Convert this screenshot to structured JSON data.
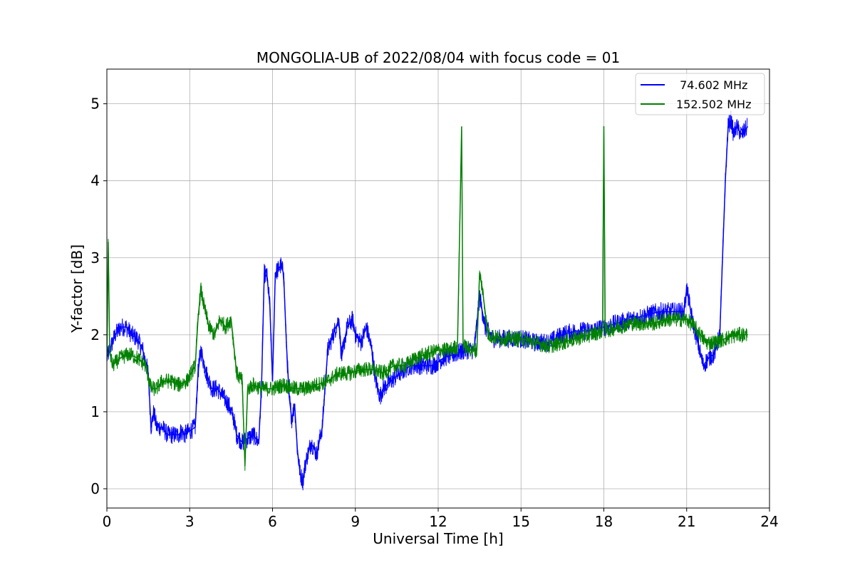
{
  "chart_data": {
    "type": "line",
    "title": "MONGOLIA-UB of 2022/08/04 with focus code = 01",
    "xlabel": "Universal Time [h]",
    "ylabel": "Y-factor [dB]",
    "xlim": [
      0,
      24
    ],
    "ylim": [
      -0.25,
      5.45
    ],
    "xticks": [
      0,
      3,
      6,
      9,
      12,
      15,
      18,
      21,
      24
    ],
    "xtick_labels": [
      "0",
      "3",
      "6",
      "9",
      "12",
      "15",
      "18",
      "21",
      "24"
    ],
    "yticks": [
      0,
      1,
      2,
      3,
      4,
      5
    ],
    "ytick_labels": [
      "0",
      "1",
      "2",
      "3",
      "4",
      "5"
    ],
    "grid": true,
    "legend_position": "top-right",
    "series": [
      {
        "name": " 74.602 MHz",
        "color": "#0000ff",
        "x": [
          0.0,
          0.1,
          0.3,
          0.5,
          0.7,
          0.9,
          1.1,
          1.3,
          1.5,
          1.6,
          1.7,
          1.8,
          2.0,
          2.2,
          2.4,
          2.6,
          2.7,
          2.8,
          3.0,
          3.2,
          3.3,
          3.4,
          3.6,
          3.8,
          4.0,
          4.2,
          4.4,
          4.6,
          4.7,
          4.9,
          5.1,
          5.3,
          5.5,
          5.6,
          5.7,
          5.8,
          5.9,
          6.0,
          6.1,
          6.2,
          6.3,
          6.4,
          6.5,
          6.6,
          6.7,
          6.8,
          6.9,
          7.0,
          7.1,
          7.2,
          7.4,
          7.6,
          7.8,
          7.9,
          8.0,
          8.2,
          8.4,
          8.5,
          8.7,
          8.9,
          9.0,
          9.2,
          9.4,
          9.6,
          9.7,
          9.8,
          9.9,
          10.0,
          10.3,
          10.6,
          11.0,
          11.4,
          11.8,
          12.2,
          12.6,
          13.0,
          13.3,
          13.5,
          13.7,
          14.0,
          14.5,
          15.0,
          15.5,
          16.0,
          16.5,
          17.0,
          17.5,
          18.0,
          18.5,
          19.0,
          19.5,
          20.0,
          20.5,
          20.9,
          21.0,
          21.2,
          21.4,
          21.6,
          21.8,
          22.0,
          22.2,
          22.3,
          22.4,
          22.5,
          22.6,
          22.7,
          22.8,
          23.0,
          23.2
        ],
        "values": [
          1.7,
          1.8,
          2.0,
          2.1,
          2.1,
          2.0,
          1.95,
          1.8,
          1.5,
          0.8,
          1.0,
          0.8,
          0.8,
          0.7,
          0.7,
          0.7,
          0.75,
          0.7,
          0.75,
          0.8,
          1.5,
          1.8,
          1.5,
          1.3,
          1.3,
          1.2,
          1.1,
          0.9,
          0.7,
          0.6,
          0.65,
          0.7,
          0.6,
          1.3,
          2.8,
          2.75,
          2.4,
          1.4,
          2.8,
          2.85,
          2.9,
          2.8,
          1.9,
          1.2,
          0.9,
          1.1,
          0.5,
          0.2,
          0.1,
          0.35,
          0.6,
          0.45,
          0.8,
          1.3,
          1.8,
          2.0,
          2.2,
          1.7,
          2.1,
          2.2,
          2.0,
          1.9,
          2.1,
          1.8,
          1.5,
          1.3,
          1.2,
          1.3,
          1.4,
          1.5,
          1.6,
          1.6,
          1.6,
          1.7,
          1.75,
          1.8,
          1.8,
          2.5,
          2.1,
          1.95,
          1.95,
          1.95,
          1.9,
          1.9,
          2.0,
          2.05,
          2.05,
          2.1,
          2.15,
          2.2,
          2.25,
          2.3,
          2.3,
          2.3,
          2.6,
          2.2,
          1.9,
          1.6,
          1.7,
          1.75,
          2.0,
          3.0,
          4.0,
          4.7,
          4.8,
          4.6,
          4.7,
          4.6,
          4.7
        ]
      },
      {
        "name": "152.502 MHz",
        "color": "#008000",
        "x": [
          0.0,
          0.05,
          0.1,
          0.2,
          0.5,
          0.8,
          1.1,
          1.4,
          1.6,
          1.8,
          2.0,
          2.3,
          2.6,
          2.9,
          3.2,
          3.3,
          3.4,
          3.5,
          3.7,
          3.9,
          4.1,
          4.3,
          4.5,
          4.7,
          4.9,
          5.0,
          5.1,
          5.3,
          5.6,
          6.0,
          6.4,
          6.8,
          7.2,
          7.6,
          8.0,
          8.4,
          8.8,
          9.2,
          9.6,
          10.0,
          10.4,
          10.8,
          11.2,
          11.6,
          12.0,
          12.4,
          12.7,
          12.85,
          12.9,
          12.95,
          13.2,
          13.4,
          13.5,
          13.6,
          13.8,
          14.2,
          14.6,
          15.0,
          15.5,
          16.0,
          16.5,
          17.0,
          17.5,
          17.95,
          18.0,
          18.05,
          18.5,
          19.0,
          19.4,
          19.8,
          20.3,
          20.8,
          21.0,
          21.3,
          21.5,
          21.7,
          22.0,
          22.4,
          22.8,
          23.1,
          23.2
        ],
        "values": [
          1.7,
          3.2,
          1.8,
          1.6,
          1.7,
          1.75,
          1.7,
          1.6,
          1.3,
          1.3,
          1.4,
          1.4,
          1.35,
          1.4,
          1.6,
          2.2,
          2.6,
          2.4,
          2.1,
          2.0,
          2.2,
          2.1,
          2.2,
          1.5,
          1.4,
          0.3,
          1.3,
          1.35,
          1.3,
          1.3,
          1.35,
          1.3,
          1.3,
          1.35,
          1.4,
          1.5,
          1.5,
          1.55,
          1.55,
          1.5,
          1.6,
          1.6,
          1.7,
          1.75,
          1.8,
          1.8,
          1.85,
          4.7,
          1.9,
          1.85,
          1.8,
          1.8,
          2.8,
          2.6,
          2.0,
          1.95,
          1.95,
          1.95,
          1.9,
          1.85,
          1.9,
          1.95,
          2.0,
          2.05,
          4.7,
          2.05,
          2.1,
          2.15,
          2.15,
          2.15,
          2.2,
          2.2,
          2.2,
          2.1,
          2.0,
          1.9,
          1.9,
          1.95,
          2.0,
          2.0,
          2.0
        ]
      }
    ]
  }
}
